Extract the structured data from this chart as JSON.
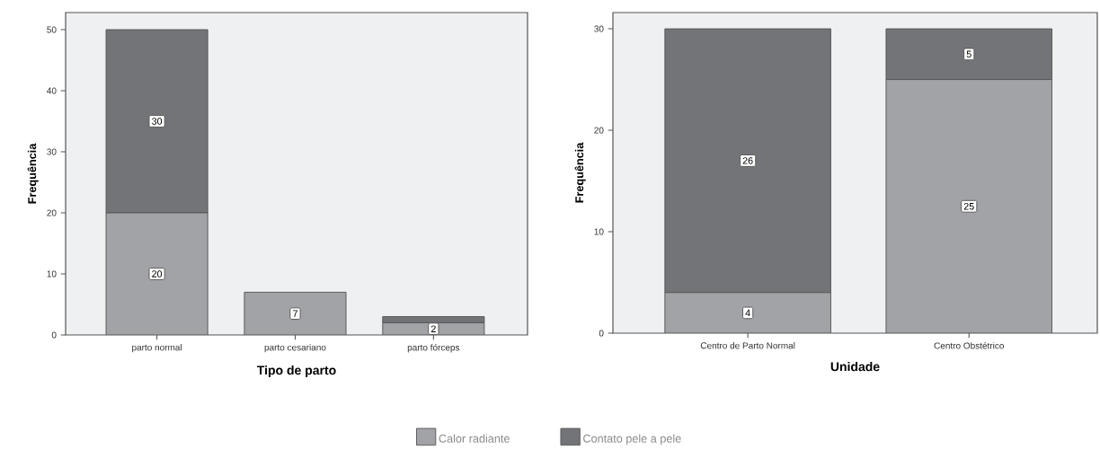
{
  "chart_data": [
    {
      "type": "bar",
      "xlabel": "Tipo de parto",
      "ylabel": "Frequência",
      "categories": [
        "parto normal",
        "parto cesariano",
        "parto fórceps"
      ],
      "stacked": true,
      "ylim": [
        0,
        52.8
      ],
      "yticks": [
        0,
        10,
        20,
        30,
        40,
        50
      ],
      "legend": "bottom",
      "series": [
        {
          "name": "Calor radiante",
          "color": "#a2a3a6",
          "values": [
            20,
            7,
            2
          ],
          "value_labels": [
            "20",
            "7",
            "2"
          ]
        },
        {
          "name": "Contato pele a pele",
          "color": "#737478",
          "values": [
            30,
            0,
            1
          ],
          "value_labels": [
            "30",
            null,
            null
          ]
        }
      ]
    },
    {
      "type": "bar",
      "xlabel": "Unidade",
      "ylabel": "Frequência",
      "categories": [
        "Centro de Parto Normal",
        "Centro Obstétrico"
      ],
      "stacked": true,
      "ylim": [
        0,
        31.6
      ],
      "yticks": [
        0,
        10,
        20,
        30
      ],
      "series": [
        {
          "color": "#a2a3a6",
          "values": [
            4,
            25
          ],
          "value_labels": [
            "4",
            "25"
          ]
        },
        {
          "color": "#737478",
          "values": [
            26,
            5
          ],
          "value_labels": [
            "26",
            "5"
          ]
        }
      ]
    }
  ]
}
